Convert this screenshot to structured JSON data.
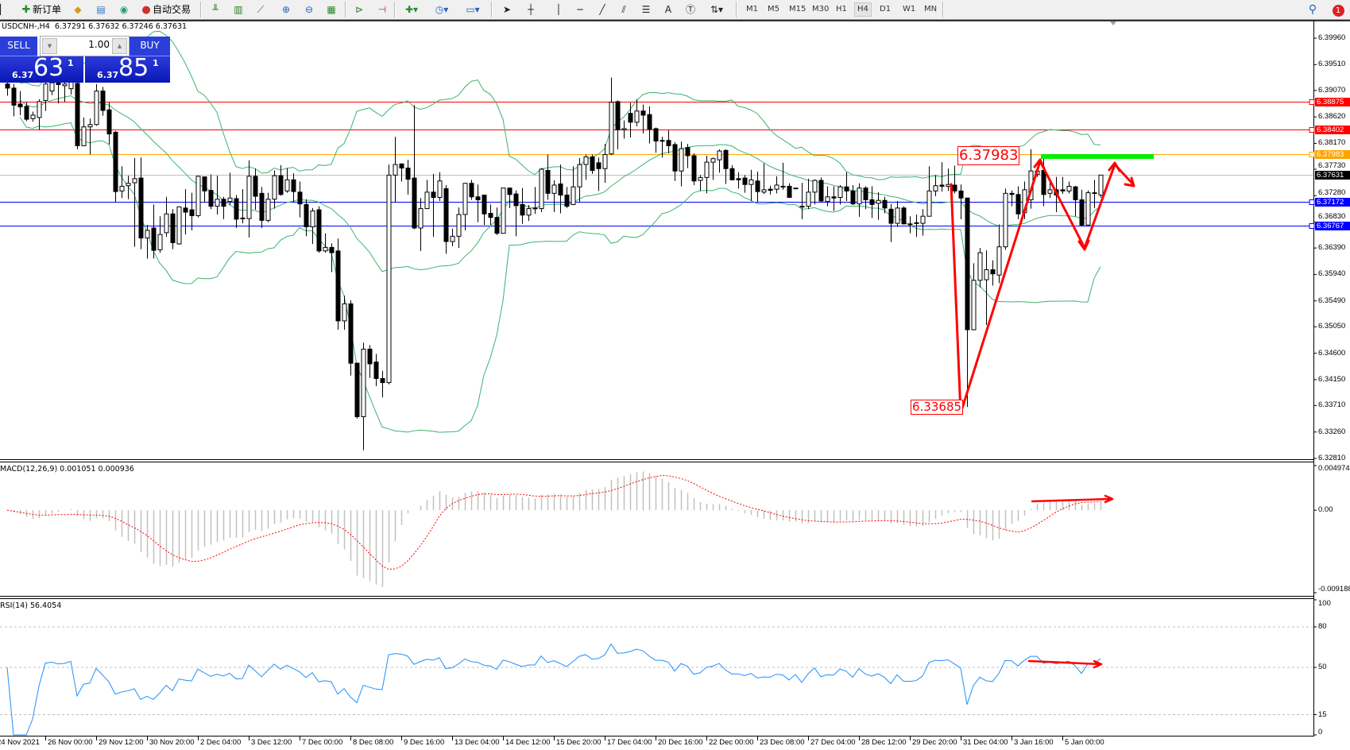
{
  "toolbar": {
    "new_order_label": "新订单",
    "auto_trading_label": "自动交易",
    "icons": [
      "new-order-icon",
      "gold-icon",
      "history-icon",
      "signals-icon",
      "auto-trading-icon",
      "bar-chart-icon",
      "candlestick-icon",
      "line-chart-icon",
      "zoom-in-icon",
      "zoom-out-icon",
      "tile-windows-icon",
      "autoscroll-icon",
      "chart-shift-icon",
      "indicators-icon",
      "periods-icon",
      "templates-icon",
      "cursor-icon",
      "crosshair-icon",
      "vertical-line-icon",
      "horizontal-line-icon",
      "trendline-icon",
      "channel-icon",
      "fibonacci-icon",
      "text-icon",
      "text-label-icon",
      "arrows-icon"
    ],
    "text_tool": "A",
    "timeframes": [
      "M1",
      "M5",
      "M15",
      "M30",
      "H1",
      "H4",
      "D1",
      "W1",
      "MN"
    ],
    "active_timeframe": "H4",
    "notification_count": "1"
  },
  "chart_header": "USDCNH-,H4  6.37291 6.37632 6.37246 6.37631",
  "trade_panel": {
    "sell_label": "SELL",
    "buy_label": "BUY",
    "lot": "1.00",
    "sell_price": {
      "prefix": "6.37",
      "big": "63",
      "sup": "1"
    },
    "buy_price": {
      "prefix": "6.37",
      "big": "85",
      "sup": "1"
    }
  },
  "annotations": {
    "high_label": "6.37983",
    "low_label": "6.33685",
    "arrow_color": "#ff0000",
    "target_bar_color": "#00ee00"
  },
  "chart_data": [
    {
      "type": "candlestick",
      "symbol": "USDCNH-",
      "timeframe": "H4",
      "ylim": [
        6.3281,
        6.4025
      ],
      "y_ticks": [
        "6.39960",
        "6.39510",
        "6.39070",
        "6.38620",
        "6.38170",
        "6.37730",
        "6.37280",
        "6.36830",
        "6.36390",
        "6.35940",
        "6.35490",
        "6.35050",
        "6.34600",
        "6.34150",
        "6.33710",
        "6.33260",
        "6.32810"
      ],
      "x_ticks": [
        "24 Nov 2021",
        "26 Nov 00:00",
        "29 Nov 12:00",
        "30 Nov 20:00",
        "2 Dec 04:00",
        "3 Dec 12:00",
        "7 Dec 00:00",
        "8 Dec 08:00",
        "9 Dec 16:00",
        "13 Dec 04:00",
        "14 Dec 12:00",
        "15 Dec 20:00",
        "17 Dec 04:00",
        "20 Dec 16:00",
        "22 Dec 00:00",
        "23 Dec 08:00",
        "27 Dec 04:00",
        "28 Dec 12:00",
        "29 Dec 20:00",
        "31 Dec 04:00",
        "3 Jan 16:00",
        "5 Jan 00:00"
      ],
      "indicator": "Bollinger Bands (20, 2)",
      "band_color": "#3cb371",
      "horizontal_lines": [
        {
          "price": "6.38875",
          "color": "#ff0000"
        },
        {
          "price": "6.38402",
          "color": "#ff0000"
        },
        {
          "price": "6.37983",
          "color": "#ffa500"
        },
        {
          "price": "6.37631",
          "color": "#000000",
          "line_color": "#c0c0c0"
        },
        {
          "price": "6.37172",
          "color": "#0000ff"
        },
        {
          "price": "6.36767",
          "color": "#0000ff"
        }
      ],
      "candles_ohlc": [
        [
          6.3918,
          6.3925,
          6.3898,
          6.3911
        ],
        [
          6.3911,
          6.3918,
          6.3863,
          6.3882
        ],
        [
          6.3884,
          6.3906,
          6.3865,
          6.3879
        ],
        [
          6.388,
          6.3887,
          6.3855,
          6.3858
        ],
        [
          6.3859,
          6.3871,
          6.3854,
          6.3865
        ],
        [
          6.3861,
          6.3892,
          6.384,
          6.3888
        ],
        [
          6.389,
          6.3925,
          6.3872,
          6.3918
        ],
        [
          6.3906,
          6.3925,
          6.3899,
          6.392
        ],
        [
          6.392,
          6.3925,
          6.3885,
          6.3917
        ],
        [
          6.3915,
          6.3925,
          6.3887,
          6.3918
        ],
        [
          6.391,
          6.393,
          6.39,
          6.3922
        ],
        [
          6.3919,
          6.3925,
          6.3807,
          6.3813
        ],
        [
          6.3813,
          6.3861,
          6.3813,
          6.3845
        ],
        [
          6.3845,
          6.3859,
          6.3798,
          6.3849
        ],
        [
          6.3849,
          6.3918,
          6.3847,
          6.3906
        ],
        [
          6.3906,
          6.3913,
          6.3864,
          6.3873
        ],
        [
          6.3874,
          6.3887,
          6.3815,
          6.3833
        ],
        [
          6.3836,
          6.3838,
          6.3717,
          6.3735
        ],
        [
          6.3736,
          6.3778,
          6.3724,
          6.3744
        ],
        [
          6.3745,
          6.3762,
          6.3722,
          6.3749
        ],
        [
          6.375,
          6.3792,
          6.3641,
          6.3757
        ],
        [
          6.3758,
          6.3793,
          6.3637,
          6.3656
        ],
        [
          6.3656,
          6.3678,
          6.3621,
          6.3669
        ],
        [
          6.3673,
          6.3713,
          6.3621,
          6.3635
        ],
        [
          6.3636,
          6.3693,
          6.3631,
          6.3662
        ],
        [
          6.3665,
          6.3726,
          6.3658,
          6.3697
        ],
        [
          6.3697,
          6.3705,
          6.3637,
          6.3648
        ],
        [
          6.3646,
          6.371,
          6.3645,
          6.3709
        ],
        [
          6.3707,
          6.3739,
          6.3662,
          6.37
        ],
        [
          6.3704,
          6.3733,
          6.3669,
          6.3694
        ],
        [
          6.3694,
          6.3762,
          6.3691,
          6.3761
        ],
        [
          6.376,
          6.376,
          6.3717,
          6.3736
        ],
        [
          6.3737,
          6.3764,
          6.3705,
          6.371
        ],
        [
          6.371,
          6.3762,
          6.3696,
          6.3722
        ],
        [
          6.3722,
          6.3726,
          6.3688,
          6.371
        ],
        [
          6.3718,
          6.3767,
          6.3712,
          6.3724
        ],
        [
          6.3723,
          6.3729,
          6.3673,
          6.3688
        ],
        [
          6.369,
          6.3739,
          6.3681,
          6.3689
        ],
        [
          6.3689,
          6.3788,
          6.3657,
          6.3761
        ],
        [
          6.3761,
          6.3774,
          6.3704,
          6.3727
        ],
        [
          6.3732,
          6.3743,
          6.3673,
          6.3686
        ],
        [
          6.3686,
          6.3733,
          6.3683,
          6.3722
        ],
        [
          6.3722,
          6.3771,
          6.3706,
          6.3762
        ],
        [
          6.3762,
          6.378,
          6.3728,
          6.373
        ],
        [
          6.3736,
          6.3775,
          6.3733,
          6.3755
        ],
        [
          6.3755,
          6.3766,
          6.3717,
          6.3735
        ],
        [
          6.3734,
          6.3752,
          6.3691,
          6.3714
        ],
        [
          6.3713,
          6.3722,
          6.3659,
          6.3675
        ],
        [
          6.3675,
          6.3707,
          6.3646,
          6.3702
        ],
        [
          6.3704,
          6.371,
          6.3631,
          6.3634
        ],
        [
          6.3634,
          6.3664,
          6.3631,
          6.364
        ],
        [
          6.364,
          6.3647,
          6.3598,
          6.3631
        ],
        [
          6.3634,
          6.3655,
          6.35,
          6.3515
        ],
        [
          6.3515,
          6.3558,
          6.35,
          6.3544
        ],
        [
          6.3544,
          6.355,
          6.3422,
          6.3443
        ],
        [
          6.3443,
          6.3444,
          6.3349,
          6.3352
        ],
        [
          6.3352,
          6.3478,
          6.3295,
          6.3467
        ],
        [
          6.3467,
          6.3474,
          6.3418,
          6.3442
        ],
        [
          6.3445,
          6.3459,
          6.3404,
          6.3417
        ],
        [
          6.3417,
          6.343,
          6.3385,
          6.341
        ],
        [
          6.341,
          6.3781,
          6.3407,
          6.3763
        ],
        [
          6.3763,
          6.3828,
          6.3717,
          6.3781
        ],
        [
          6.3782,
          6.3783,
          6.3752,
          6.3775
        ],
        [
          6.3775,
          6.3789,
          6.373,
          6.3756
        ],
        [
          6.3758,
          6.3882,
          6.3671,
          6.3673
        ],
        [
          6.3673,
          6.3724,
          6.3634,
          6.3706
        ],
        [
          6.3706,
          6.3755,
          6.3706,
          6.3734
        ],
        [
          6.3734,
          6.3765,
          6.3658,
          6.3725
        ],
        [
          6.3725,
          6.3768,
          6.3719,
          6.3753
        ],
        [
          6.374,
          6.3746,
          6.3629,
          6.365
        ],
        [
          6.365,
          6.3672,
          6.3642,
          6.3659
        ],
        [
          6.3659,
          6.3708,
          6.3639,
          6.3696
        ],
        [
          6.3696,
          6.375,
          6.3669,
          6.3749
        ],
        [
          6.3749,
          6.3755,
          6.3721,
          6.3726
        ],
        [
          6.3726,
          6.3747,
          6.3683,
          6.3721
        ],
        [
          6.3729,
          6.3729,
          6.3678,
          6.3697
        ],
        [
          6.3698,
          6.3713,
          6.3678,
          6.3691
        ],
        [
          6.3691,
          6.3708,
          6.3661,
          6.3664
        ],
        [
          6.3664,
          6.3741,
          6.3664,
          6.3741
        ],
        [
          6.3741,
          6.3741,
          6.3707,
          6.373
        ],
        [
          6.3731,
          6.3737,
          6.3659,
          6.3711
        ],
        [
          6.3713,
          6.3741,
          6.368,
          6.3695
        ],
        [
          6.3695,
          6.3712,
          6.3685,
          6.3706
        ],
        [
          6.3707,
          6.3743,
          6.3697,
          6.3706
        ],
        [
          6.3706,
          6.3775,
          6.37,
          6.3773
        ],
        [
          6.3771,
          6.3798,
          6.3721,
          6.3732
        ],
        [
          6.3732,
          6.3754,
          6.37,
          6.3746
        ],
        [
          6.3748,
          6.3781,
          6.3698,
          6.3729
        ],
        [
          6.3729,
          6.3743,
          6.3707,
          6.371
        ],
        [
          6.3713,
          6.3778,
          6.3712,
          6.3743
        ],
        [
          6.3743,
          6.3792,
          6.3717,
          6.3781
        ],
        [
          6.3781,
          6.3798,
          6.3755,
          6.3794
        ],
        [
          6.3794,
          6.3798,
          6.3765,
          6.3771
        ],
        [
          6.3784,
          6.3793,
          6.3736,
          6.3774
        ],
        [
          6.3774,
          6.3816,
          6.375,
          6.3798
        ],
        [
          6.3799,
          6.3929,
          6.3797,
          6.3887
        ],
        [
          6.3888,
          6.389,
          6.3807,
          6.384
        ],
        [
          6.384,
          6.3856,
          6.3825,
          6.3842
        ],
        [
          6.3868,
          6.3886,
          6.3827,
          6.3853
        ],
        [
          6.3853,
          6.3892,
          6.3846,
          6.3872
        ],
        [
          6.3872,
          6.3883,
          6.3834,
          6.3865
        ],
        [
          6.3866,
          6.388,
          6.3817,
          6.3841
        ],
        [
          6.3842,
          6.3844,
          6.3801,
          6.3821
        ],
        [
          6.3822,
          6.3828,
          6.3793,
          6.3821
        ],
        [
          6.3822,
          6.3839,
          6.38,
          6.3813
        ],
        [
          6.3815,
          6.3819,
          6.3753,
          6.377
        ],
        [
          6.377,
          6.382,
          6.3744,
          6.3808
        ],
        [
          6.381,
          6.3816,
          6.3775,
          6.3796
        ],
        [
          6.3796,
          6.38,
          6.3746,
          6.3753
        ],
        [
          6.3754,
          6.3763,
          6.3736,
          6.3759
        ],
        [
          6.3759,
          6.3796,
          6.3732,
          6.3785
        ],
        [
          6.3785,
          6.3793,
          6.3755,
          6.3791
        ],
        [
          6.3789,
          6.3807,
          6.3767,
          6.3804
        ],
        [
          6.3805,
          6.3807,
          6.3748,
          6.3774
        ],
        [
          6.3774,
          6.378,
          6.3754,
          6.3755
        ],
        [
          6.3757,
          6.3768,
          6.374,
          6.3755
        ],
        [
          6.3758,
          6.3763,
          6.3733,
          6.3747
        ],
        [
          6.3747,
          6.3772,
          6.3719,
          6.3755
        ],
        [
          6.3753,
          6.3769,
          6.3716,
          6.3735
        ],
        [
          6.3734,
          6.3783,
          6.3731,
          6.3738
        ],
        [
          6.3739,
          6.3745,
          6.373,
          6.3737
        ],
        [
          6.3739,
          6.3761,
          6.3732,
          6.3746
        ],
        [
          6.3744,
          6.3784,
          6.3738,
          6.3743
        ],
        [
          6.3744,
          6.3749,
          6.3725,
          6.3725
        ],
        [
          6.3741,
          6.3741,
          6.374,
          6.374
        ],
        [
          6.371,
          6.375,
          6.3688,
          6.3709
        ],
        [
          6.371,
          6.3757,
          6.3705,
          6.3734
        ],
        [
          6.3734,
          6.3756,
          6.3713,
          6.3754
        ],
        [
          6.3754,
          6.3759,
          6.3717,
          6.3719
        ],
        [
          6.3718,
          6.3744,
          6.371,
          6.3726
        ],
        [
          6.3726,
          6.3744,
          6.3702,
          6.3724
        ],
        [
          6.3725,
          6.3746,
          6.3713,
          6.3743
        ],
        [
          6.3743,
          6.3768,
          6.3719,
          6.3736
        ],
        [
          6.3736,
          6.3746,
          6.3712,
          6.3714
        ],
        [
          6.3714,
          6.3749,
          6.3692,
          6.3741
        ],
        [
          6.3741,
          6.3744,
          6.3705,
          6.3721
        ],
        [
          6.3721,
          6.3744,
          6.369,
          6.3713
        ],
        [
          6.3715,
          6.3734,
          6.3687,
          6.372
        ],
        [
          6.372,
          6.3726,
          6.3698,
          6.3707
        ],
        [
          6.3705,
          6.3714,
          6.3649,
          6.3681
        ],
        [
          6.3681,
          6.3719,
          6.3675,
          6.3707
        ],
        [
          6.3707,
          6.371,
          6.3679,
          6.368
        ],
        [
          6.368,
          6.3693,
          6.3664,
          6.3679
        ],
        [
          6.3682,
          6.3696,
          6.3658,
          6.3681
        ],
        [
          6.3681,
          6.3705,
          6.366,
          6.3693
        ],
        [
          6.3693,
          6.3778,
          6.3693,
          6.3736
        ],
        [
          6.3736,
          6.3763,
          6.3727,
          6.3745
        ],
        [
          6.3746,
          6.3785,
          6.3735,
          6.3744
        ],
        [
          6.3744,
          6.3774,
          6.3736,
          6.3747
        ],
        [
          6.3746,
          6.3779,
          6.3732,
          6.3736
        ],
        [
          6.3736,
          6.3747,
          6.3688,
          6.3724
        ],
        [
          6.3724,
          6.3724,
          6.33685,
          6.35
        ],
        [
          6.35,
          6.3613,
          6.3499,
          6.3584
        ],
        [
          6.3584,
          6.3639,
          6.3572,
          6.3631
        ],
        [
          6.3585,
          6.3635,
          6.3508,
          6.3602
        ],
        [
          6.3602,
          6.3618,
          6.3575,
          6.3595
        ],
        [
          6.3593,
          6.3679,
          6.3579,
          6.3641
        ],
        [
          6.3641,
          6.374,
          6.3636,
          6.3732
        ],
        [
          6.3732,
          6.3737,
          6.371,
          6.373
        ],
        [
          6.373,
          6.3744,
          6.3688,
          6.3697
        ],
        [
          6.3699,
          6.3752,
          6.3688,
          6.3738
        ],
        [
          6.3721,
          6.3807,
          6.3706,
          6.377
        ],
        [
          6.3764,
          6.3774,
          6.376,
          6.377
        ],
        [
          6.3771,
          6.37983,
          6.371,
          6.373
        ],
        [
          6.3732,
          6.3755,
          6.3724,
          6.3738
        ],
        [
          6.3738,
          6.376,
          6.37,
          6.3729
        ],
        [
          6.3738,
          6.376,
          6.3731,
          6.3736
        ],
        [
          6.3736,
          6.3752,
          6.3732,
          6.3744
        ],
        [
          6.3743,
          6.3745,
          6.3693,
          6.3721
        ],
        [
          6.3721,
          6.3738,
          6.3677,
          6.3678
        ],
        [
          6.3678,
          6.3737,
          6.3677,
          6.3733
        ],
        [
          6.3732,
          6.3755,
          6.3707,
          6.3733
        ],
        [
          6.37291,
          6.37632,
          6.37246,
          6.37631
        ]
      ]
    },
    {
      "type": "histogram+line",
      "title": "MACD(12,26,9) 0.001051 0.000936",
      "ylim": [
        -0.009188,
        0.004974
      ],
      "y_ticks": [
        "0.004974",
        "0.00",
        "-0.009188"
      ],
      "series": [
        {
          "name": "main",
          "color": "#c0c0c0"
        },
        {
          "name": "signal",
          "color": "#ff0000"
        }
      ]
    },
    {
      "type": "line",
      "title": "RSI(14) 56.4054",
      "ylim": [
        0,
        100
      ],
      "y_ticks": [
        "100",
        "80",
        "50",
        "15",
        "0"
      ],
      "levels": [
        80,
        50,
        15
      ],
      "color": "#1e90ff"
    }
  ]
}
